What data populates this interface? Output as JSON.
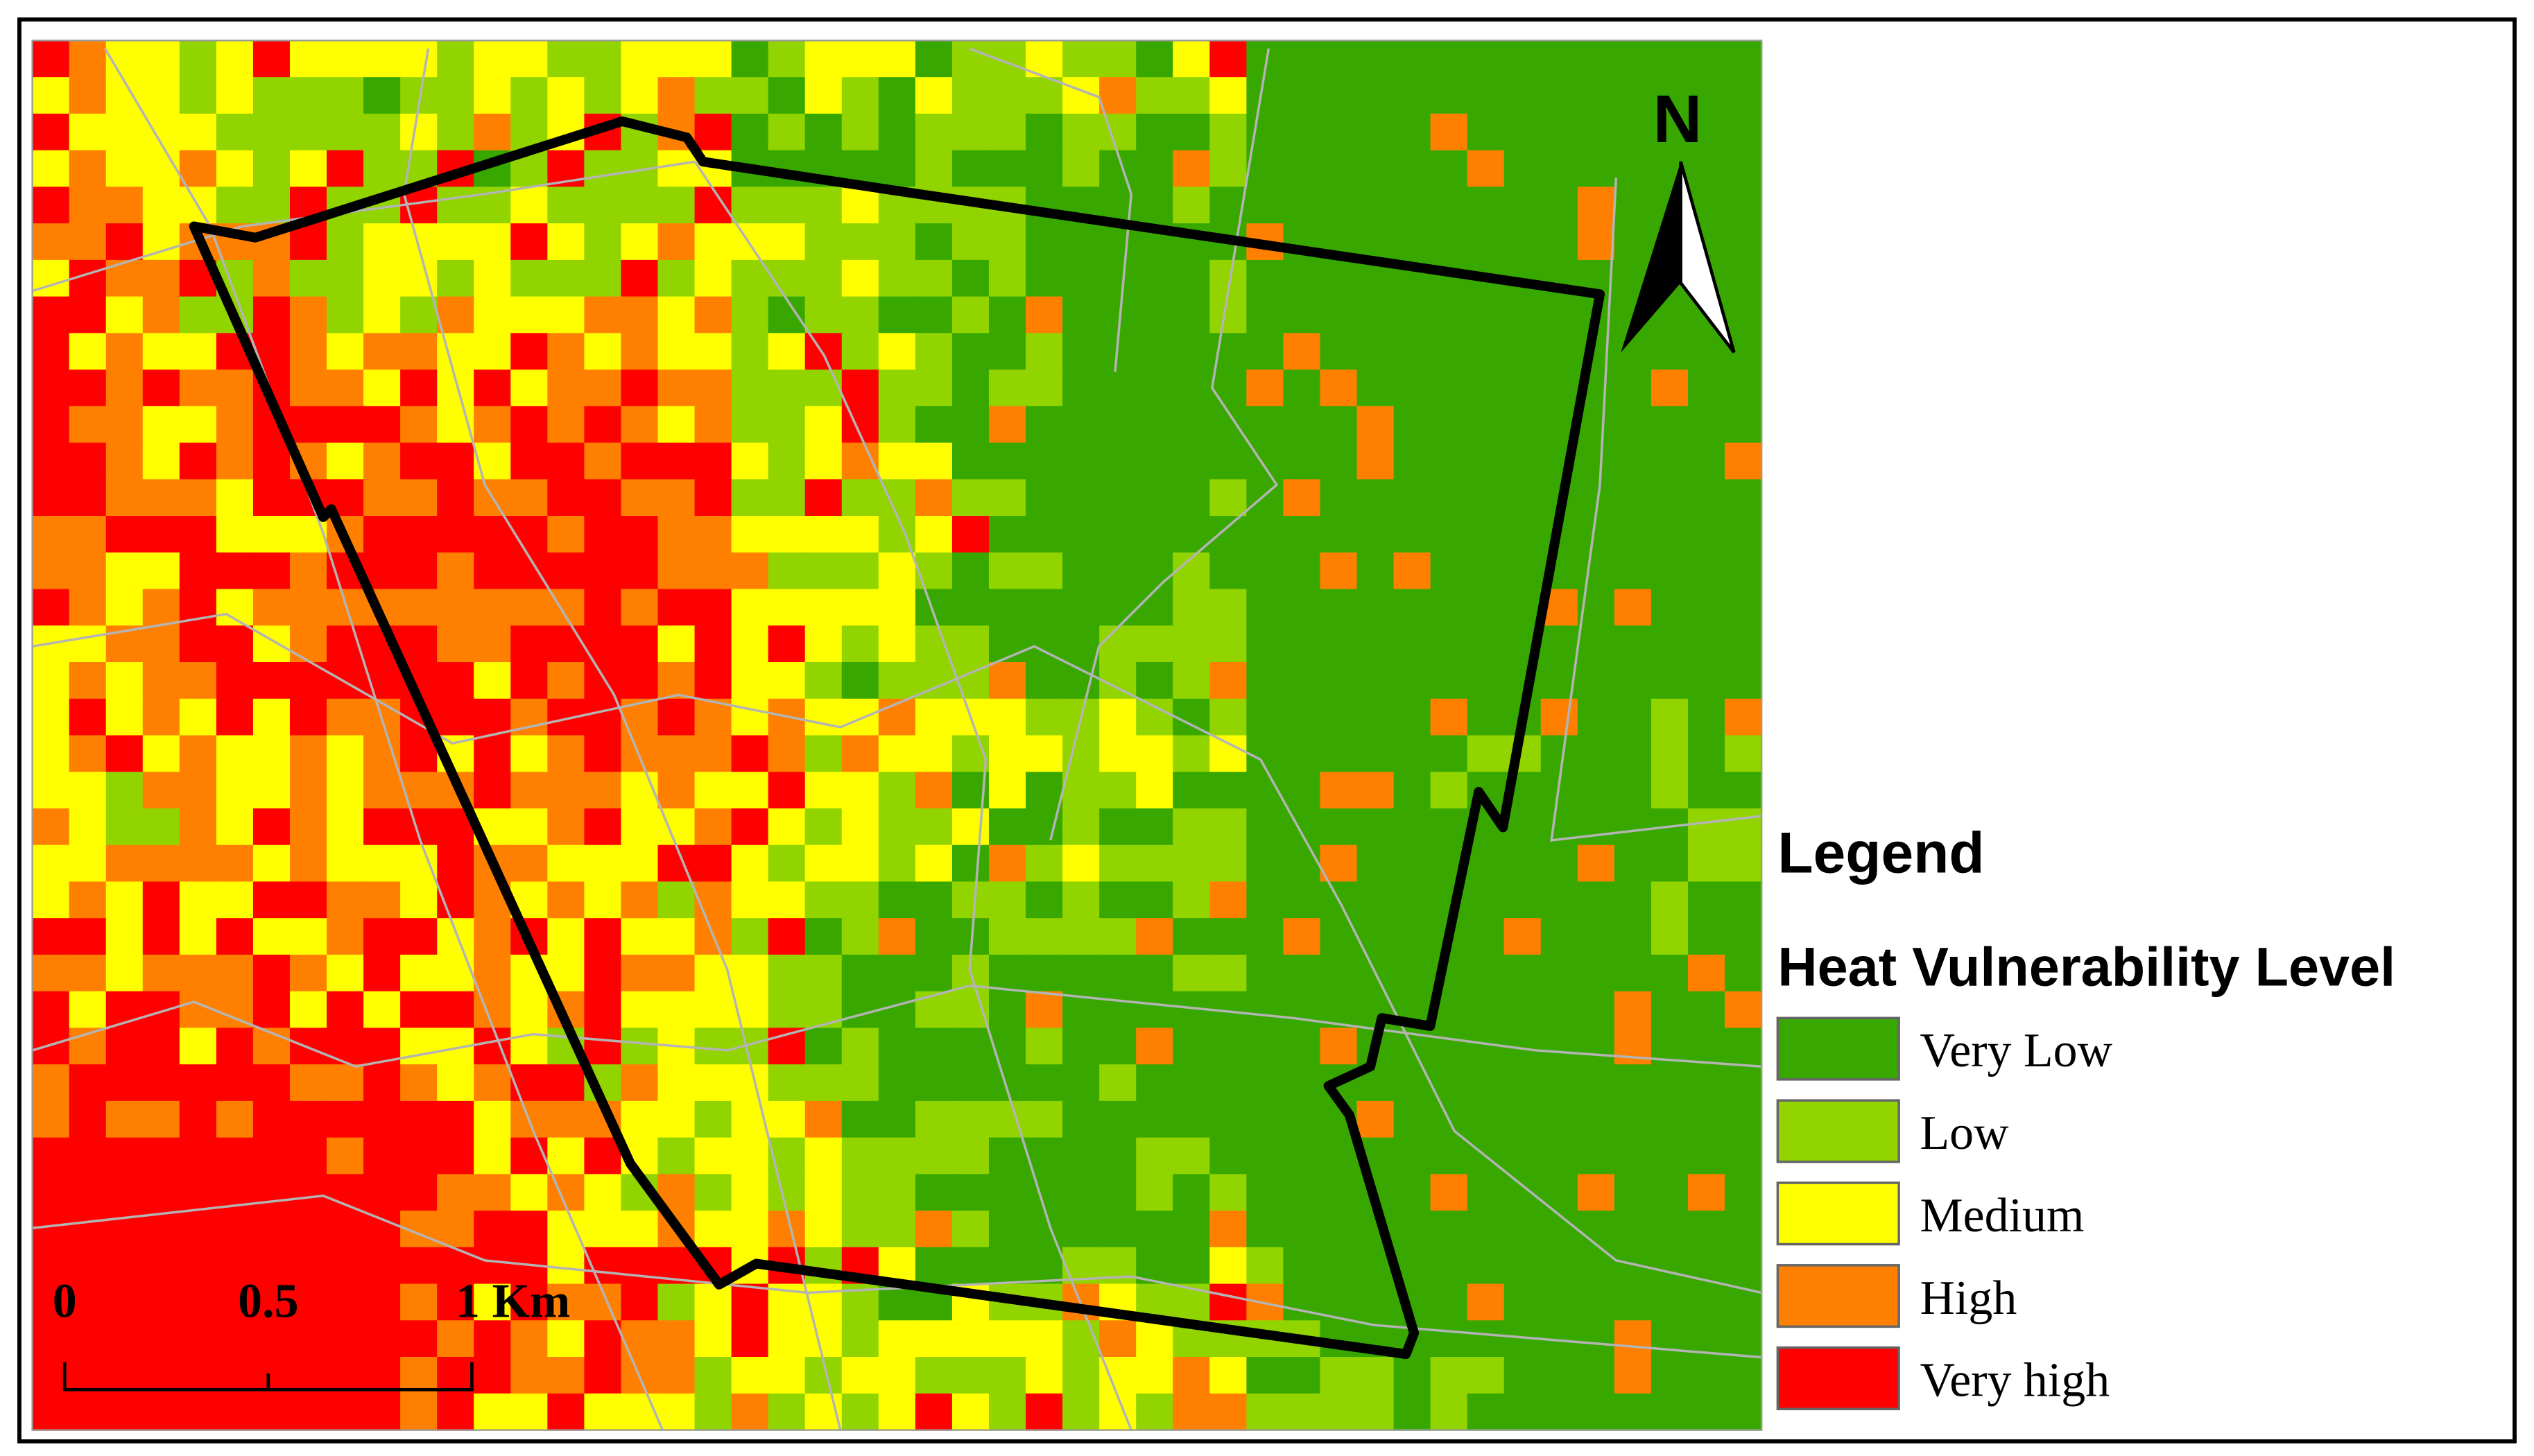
{
  "north_arrow": "N",
  "scale_bar": [
    "0",
    "0.5",
    "1 Km"
  ],
  "legend": {
    "title": "Legend",
    "subtitle": "Heat Vulnerability Level",
    "items": [
      {
        "label": "Very Low",
        "color": "#38a800"
      },
      {
        "label": "Low",
        "color": "#91d400"
      },
      {
        "label": "Medium",
        "color": "#ffff00"
      },
      {
        "label": "High",
        "color": "#ff8000"
      },
      {
        "label": "Very high",
        "color": "#ff0000"
      }
    ]
  }
}
